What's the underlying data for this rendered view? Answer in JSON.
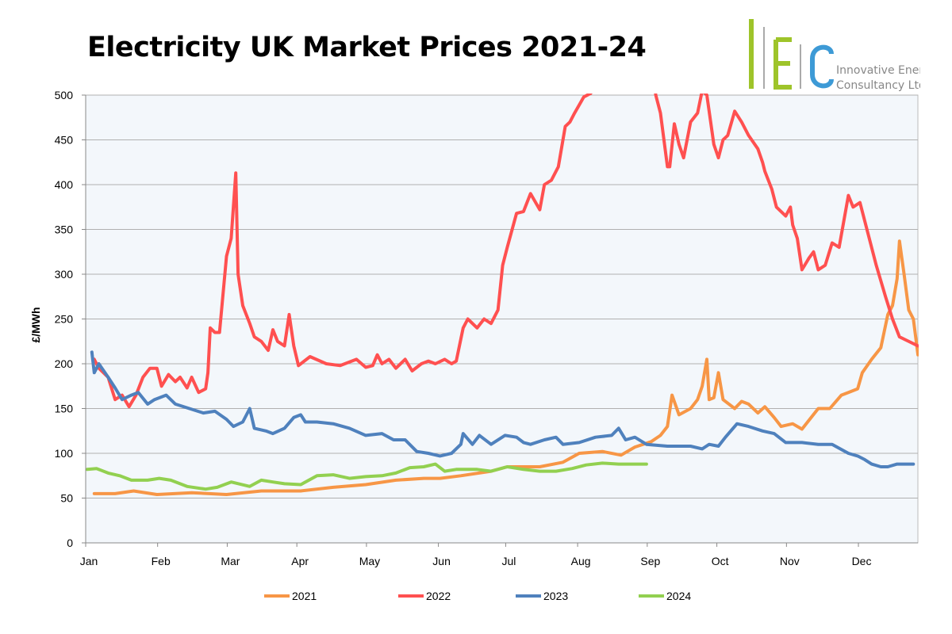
{
  "logo": {
    "letters": "IEC",
    "line1": "Innovative Energy",
    "line2": "Consultancy Ltd",
    "colors": {
      "green": "#9ec42a",
      "blue": "#3d9ad6",
      "gray": "#888888"
    }
  },
  "chart_data": {
    "type": "line",
    "title": "Electricity UK Market Prices 2021-24",
    "xlabel": "",
    "ylabel": "£/MWh",
    "x_unit": "day of year",
    "xlim": [
      -0.7,
      358
    ],
    "ylim": [
      0,
      500
    ],
    "yticks": [
      0,
      50,
      100,
      150,
      200,
      250,
      300,
      350,
      400,
      450,
      500
    ],
    "xticks": [
      {
        "label": "Jan",
        "day": 0
      },
      {
        "label": "Feb",
        "day": 31
      },
      {
        "label": "Mar",
        "day": 61
      },
      {
        "label": "Apr",
        "day": 91
      },
      {
        "label": "May",
        "day": 121
      },
      {
        "label": "Jun",
        "day": 152
      },
      {
        "label": "Jul",
        "day": 181
      },
      {
        "label": "Aug",
        "day": 212
      },
      {
        "label": "Sep",
        "day": 242
      },
      {
        "label": "Oct",
        "day": 272
      },
      {
        "label": "Nov",
        "day": 302
      },
      {
        "label": "Dec",
        "day": 333
      }
    ],
    "grid": true,
    "legend_position": "bottom",
    "series": [
      {
        "name": "2021",
        "color": "#f79646",
        "points": [
          [
            3,
            55
          ],
          [
            12,
            55
          ],
          [
            20,
            58
          ],
          [
            30,
            54
          ],
          [
            45,
            56
          ],
          [
            60,
            54
          ],
          [
            75,
            58
          ],
          [
            92,
            58
          ],
          [
            106,
            62
          ],
          [
            120,
            65
          ],
          [
            133,
            70
          ],
          [
            145,
            72
          ],
          [
            152,
            72
          ],
          [
            161,
            75
          ],
          [
            174,
            80
          ],
          [
            181,
            85
          ],
          [
            195,
            85
          ],
          [
            205,
            90
          ],
          [
            212,
            100
          ],
          [
            222,
            102
          ],
          [
            230,
            98
          ],
          [
            236,
            107
          ],
          [
            243,
            113
          ],
          [
            247,
            120
          ],
          [
            250,
            130
          ],
          [
            252,
            165
          ],
          [
            255,
            143
          ],
          [
            260,
            150
          ],
          [
            263,
            160
          ],
          [
            265,
            175
          ],
          [
            267,
            205
          ],
          [
            268,
            160
          ],
          [
            270,
            162
          ],
          [
            272,
            190
          ],
          [
            274,
            160
          ],
          [
            279,
            150
          ],
          [
            282,
            158
          ],
          [
            285,
            155
          ],
          [
            289,
            145
          ],
          [
            292,
            152
          ],
          [
            296,
            140
          ],
          [
            299,
            130
          ],
          [
            304,
            133
          ],
          [
            308,
            127
          ],
          [
            315,
            150
          ],
          [
            320,
            150
          ],
          [
            325,
            165
          ],
          [
            328,
            168
          ],
          [
            332,
            172
          ],
          [
            334,
            190
          ],
          [
            338,
            205
          ],
          [
            342,
            218
          ],
          [
            345,
            255
          ],
          [
            347,
            265
          ],
          [
            349,
            295
          ],
          [
            350,
            337
          ],
          [
            352,
            300
          ],
          [
            354,
            260
          ],
          [
            356,
            250
          ],
          [
            358,
            210
          ]
        ]
      },
      {
        "name": "2022",
        "color": "#ff5050",
        "points": [
          [
            3,
            205
          ],
          [
            5,
            195
          ],
          [
            9,
            185
          ],
          [
            12,
            160
          ],
          [
            15,
            165
          ],
          [
            18,
            152
          ],
          [
            21,
            165
          ],
          [
            24,
            185
          ],
          [
            27,
            195
          ],
          [
            30,
            195
          ],
          [
            32,
            175
          ],
          [
            35,
            188
          ],
          [
            38,
            180
          ],
          [
            40,
            185
          ],
          [
            43,
            173
          ],
          [
            45,
            185
          ],
          [
            48,
            168
          ],
          [
            51,
            172
          ],
          [
            52,
            190
          ],
          [
            53,
            240
          ],
          [
            55,
            235
          ],
          [
            57,
            235
          ],
          [
            60,
            320
          ],
          [
            62,
            340
          ],
          [
            64,
            413
          ],
          [
            65,
            300
          ],
          [
            67,
            265
          ],
          [
            70,
            245
          ],
          [
            72,
            230
          ],
          [
            75,
            225
          ],
          [
            78,
            215
          ],
          [
            80,
            238
          ],
          [
            82,
            225
          ],
          [
            85,
            220
          ],
          [
            87,
            255
          ],
          [
            89,
            220
          ],
          [
            91,
            198
          ],
          [
            96,
            208
          ],
          [
            103,
            200
          ],
          [
            109,
            198
          ],
          [
            116,
            205
          ],
          [
            120,
            196
          ],
          [
            123,
            198
          ],
          [
            125,
            210
          ],
          [
            127,
            200
          ],
          [
            130,
            205
          ],
          [
            133,
            195
          ],
          [
            137,
            205
          ],
          [
            140,
            192
          ],
          [
            144,
            200
          ],
          [
            147,
            203
          ],
          [
            150,
            200
          ],
          [
            154,
            205
          ],
          [
            157,
            200
          ],
          [
            159,
            203
          ],
          [
            162,
            240
          ],
          [
            164,
            250
          ],
          [
            168,
            240
          ],
          [
            171,
            250
          ],
          [
            174,
            245
          ],
          [
            177,
            260
          ],
          [
            179,
            310
          ],
          [
            181,
            330
          ],
          [
            185,
            368
          ],
          [
            188,
            370
          ],
          [
            191,
            390
          ],
          [
            195,
            372
          ],
          [
            197,
            400
          ],
          [
            200,
            405
          ],
          [
            203,
            420
          ],
          [
            206,
            465
          ],
          [
            208,
            470
          ],
          [
            210,
            480
          ],
          [
            214,
            498
          ],
          [
            217,
            502
          ],
          [
            222,
            540
          ],
          [
            243,
            540
          ],
          [
            245,
            500
          ],
          [
            247,
            480
          ],
          [
            250,
            420
          ],
          [
            251,
            420
          ],
          [
            253,
            468
          ],
          [
            255,
            445
          ],
          [
            257,
            430
          ],
          [
            260,
            470
          ],
          [
            263,
            480
          ],
          [
            265,
            505
          ],
          [
            267,
            500
          ],
          [
            270,
            445
          ],
          [
            272,
            430
          ],
          [
            274,
            450
          ],
          [
            276,
            455
          ],
          [
            279,
            482
          ],
          [
            282,
            470
          ],
          [
            285,
            455
          ],
          [
            289,
            440
          ],
          [
            291,
            425
          ],
          [
            292,
            415
          ],
          [
            295,
            395
          ],
          [
            297,
            375
          ],
          [
            301,
            365
          ],
          [
            303,
            375
          ],
          [
            304,
            355
          ],
          [
            306,
            340
          ],
          [
            308,
            305
          ],
          [
            311,
            318
          ],
          [
            313,
            325
          ],
          [
            315,
            305
          ],
          [
            318,
            310
          ],
          [
            321,
            335
          ],
          [
            324,
            330
          ],
          [
            328,
            388
          ],
          [
            330,
            375
          ],
          [
            333,
            380
          ],
          [
            337,
            340
          ],
          [
            340,
            310
          ],
          [
            344,
            275
          ],
          [
            347,
            250
          ],
          [
            350,
            230
          ],
          [
            358,
            220
          ]
        ]
      },
      {
        "name": "2023",
        "color": "#4f81bd",
        "points": [
          [
            2,
            213
          ],
          [
            3,
            190
          ],
          [
            5,
            200
          ],
          [
            9,
            185
          ],
          [
            12,
            173
          ],
          [
            15,
            160
          ],
          [
            19,
            165
          ],
          [
            22,
            168
          ],
          [
            26,
            155
          ],
          [
            29,
            160
          ],
          [
            34,
            165
          ],
          [
            38,
            155
          ],
          [
            44,
            150
          ],
          [
            50,
            145
          ],
          [
            55,
            147
          ],
          [
            60,
            138
          ],
          [
            63,
            130
          ],
          [
            67,
            135
          ],
          [
            70,
            150
          ],
          [
            72,
            128
          ],
          [
            77,
            125
          ],
          [
            80,
            122
          ],
          [
            85,
            128
          ],
          [
            89,
            140
          ],
          [
            92,
            143
          ],
          [
            94,
            135
          ],
          [
            99,
            135
          ],
          [
            106,
            133
          ],
          [
            113,
            128
          ],
          [
            120,
            120
          ],
          [
            127,
            122
          ],
          [
            132,
            115
          ],
          [
            137,
            115
          ],
          [
            142,
            102
          ],
          [
            147,
            100
          ],
          [
            152,
            97
          ],
          [
            157,
            100
          ],
          [
            161,
            110
          ],
          [
            162,
            122
          ],
          [
            166,
            110
          ],
          [
            169,
            120
          ],
          [
            174,
            110
          ],
          [
            180,
            120
          ],
          [
            185,
            118
          ],
          [
            188,
            112
          ],
          [
            191,
            110
          ],
          [
            197,
            115
          ],
          [
            202,
            118
          ],
          [
            205,
            110
          ],
          [
            212,
            112
          ],
          [
            219,
            118
          ],
          [
            226,
            120
          ],
          [
            229,
            128
          ],
          [
            232,
            115
          ],
          [
            236,
            118
          ],
          [
            241,
            110
          ],
          [
            250,
            108
          ],
          [
            260,
            108
          ],
          [
            265,
            105
          ],
          [
            268,
            110
          ],
          [
            272,
            108
          ],
          [
            275,
            118
          ],
          [
            280,
            133
          ],
          [
            285,
            130
          ],
          [
            291,
            125
          ],
          [
            296,
            122
          ],
          [
            301,
            112
          ],
          [
            308,
            112
          ],
          [
            315,
            110
          ],
          [
            321,
            110
          ],
          [
            328,
            100
          ],
          [
            332,
            97
          ],
          [
            335,
            93
          ],
          [
            338,
            88
          ],
          [
            342,
            85
          ],
          [
            345,
            85
          ],
          [
            349,
            88
          ],
          [
            356,
            88
          ]
        ]
      },
      {
        "name": "2024",
        "color": "#92d050",
        "points": [
          [
            0,
            82
          ],
          [
            4,
            83
          ],
          [
            9,
            78
          ],
          [
            14,
            75
          ],
          [
            19,
            70
          ],
          [
            26,
            70
          ],
          [
            31,
            72
          ],
          [
            36,
            70
          ],
          [
            43,
            63
          ],
          [
            51,
            60
          ],
          [
            56,
            62
          ],
          [
            62,
            68
          ],
          [
            70,
            63
          ],
          [
            75,
            70
          ],
          [
            80,
            68
          ],
          [
            85,
            66
          ],
          [
            92,
            65
          ],
          [
            99,
            75
          ],
          [
            106,
            76
          ],
          [
            113,
            72
          ],
          [
            120,
            74
          ],
          [
            127,
            75
          ],
          [
            133,
            78
          ],
          [
            139,
            84
          ],
          [
            145,
            85
          ],
          [
            150,
            88
          ],
          [
            154,
            80
          ],
          [
            159,
            82
          ],
          [
            168,
            82
          ],
          [
            174,
            80
          ],
          [
            181,
            85
          ],
          [
            188,
            82
          ],
          [
            195,
            80
          ],
          [
            202,
            80
          ],
          [
            209,
            83
          ],
          [
            215,
            87
          ],
          [
            222,
            89
          ],
          [
            229,
            88
          ],
          [
            236,
            88
          ],
          [
            241,
            88
          ]
        ]
      }
    ]
  }
}
